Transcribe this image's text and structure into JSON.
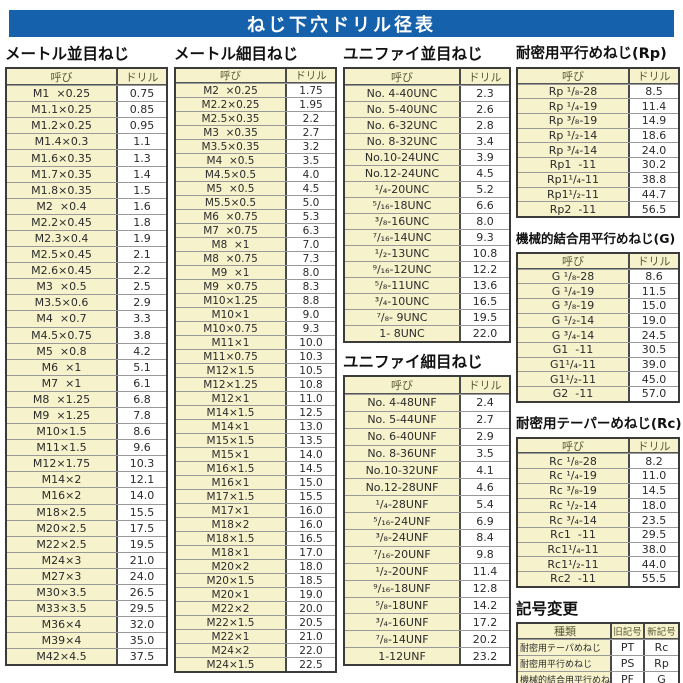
{
  "page_title": "ねじ下穴ドリル径表",
  "col_headers": {
    "name": "呼び",
    "drill": "ドリル"
  },
  "colors": {
    "banner_blue": "#1661ab",
    "cell_cream": "#f6f2cb",
    "border_dark": "#3b3b3b"
  },
  "sections": [
    {
      "id": "metric-coarse",
      "title": "メートル並目ねじ",
      "rows": [
        [
          "M1  ×0.25",
          "0.75"
        ],
        [
          "M1.1×0.25",
          "0.85"
        ],
        [
          "M1.2×0.25",
          "0.95"
        ],
        [
          "M1.4×0.3",
          "1.1"
        ],
        [
          "M1.6×0.35",
          "1.3"
        ],
        [
          "M1.7×0.35",
          "1.4"
        ],
        [
          "M1.8×0.35",
          "1.5"
        ],
        [
          "M2  ×0.4",
          "1.6"
        ],
        [
          "M2.2×0.45",
          "1.8"
        ],
        [
          "M2.3×0.4",
          "1.9"
        ],
        [
          "M2.5×0.45",
          "2.1"
        ],
        [
          "M2.6×0.45",
          "2.2"
        ],
        [
          "M3  ×0.5",
          "2.5"
        ],
        [
          "M3.5×0.6",
          "2.9"
        ],
        [
          "M4  ×0.7",
          "3.3"
        ],
        [
          "M4.5×0.75",
          "3.8"
        ],
        [
          "M5  ×0.8",
          "4.2"
        ],
        [
          "M6  ×1",
          "5.1"
        ],
        [
          "M7  ×1",
          "6.1"
        ],
        [
          "M8  ×1.25",
          "6.8"
        ],
        [
          "M9  ×1.25",
          "7.8"
        ],
        [
          "M10×1.5",
          "8.6"
        ],
        [
          "M11×1.5",
          "9.6"
        ],
        [
          "M12×1.75",
          "10.3"
        ],
        [
          "M14×2",
          "12.1"
        ],
        [
          "M16×2",
          "14.0"
        ],
        [
          "M18×2.5",
          "15.5"
        ],
        [
          "M20×2.5",
          "17.5"
        ],
        [
          "M22×2.5",
          "19.5"
        ],
        [
          "M24×3",
          "21.0"
        ],
        [
          "M27×3",
          "24.0"
        ],
        [
          "M30×3.5",
          "26.5"
        ],
        [
          "M33×3.5",
          "29.5"
        ],
        [
          "M36×4",
          "32.0"
        ],
        [
          "M39×4",
          "35.0"
        ],
        [
          "M42×4.5",
          "37.5"
        ]
      ]
    },
    {
      "id": "metric-fine",
      "title": "メートル細目ねじ",
      "rows": [
        [
          "M2  ×0.25",
          "1.75"
        ],
        [
          "M2.2×0.25",
          "1.95"
        ],
        [
          "M2.5×0.35",
          "2.2"
        ],
        [
          "M3  ×0.35",
          "2.7"
        ],
        [
          "M3.5×0.35",
          "3.2"
        ],
        [
          "M4  ×0.5",
          "3.5"
        ],
        [
          "M4.5×0.5",
          "4.0"
        ],
        [
          "M5  ×0.5",
          "4.5"
        ],
        [
          "M5.5×0.5",
          "5.0"
        ],
        [
          "M6  ×0.75",
          "5.3"
        ],
        [
          "M7  ×0.75",
          "6.3"
        ],
        [
          "M8  ×1",
          "7.0"
        ],
        [
          "M8  ×0.75",
          "7.3"
        ],
        [
          "M9  ×1",
          "8.0"
        ],
        [
          "M9  ×0.75",
          "8.3"
        ],
        [
          "M10×1.25",
          "8.8"
        ],
        [
          "M10×1",
          "9.0"
        ],
        [
          "M10×0.75",
          "9.3"
        ],
        [
          "M11×1",
          "10.0"
        ],
        [
          "M11×0.75",
          "10.3"
        ],
        [
          "M12×1.5",
          "10.5"
        ],
        [
          "M12×1.25",
          "10.8"
        ],
        [
          "M12×1",
          "11.0"
        ],
        [
          "M14×1.5",
          "12.5"
        ],
        [
          "M14×1",
          "13.0"
        ],
        [
          "M15×1.5",
          "13.5"
        ],
        [
          "M15×1",
          "14.0"
        ],
        [
          "M16×1.5",
          "14.5"
        ],
        [
          "M16×1",
          "15.0"
        ],
        [
          "M17×1.5",
          "15.5"
        ],
        [
          "M17×1",
          "16.0"
        ],
        [
          "M18×2",
          "16.0"
        ],
        [
          "M18×1.5",
          "16.5"
        ],
        [
          "M18×1",
          "17.0"
        ],
        [
          "M20×2",
          "18.0"
        ],
        [
          "M20×1.5",
          "18.5"
        ],
        [
          "M20×1",
          "19.0"
        ],
        [
          "M22×2",
          "20.0"
        ],
        [
          "M22×1.5",
          "20.5"
        ],
        [
          "M22×1",
          "21.0"
        ],
        [
          "M24×2",
          "22.0"
        ],
        [
          "M24×1.5",
          "22.5"
        ]
      ]
    },
    {
      "id": "unified-coarse",
      "title": "ユニファイ並目ねじ",
      "rows": [
        [
          "No. 4-40UNC",
          "2.3"
        ],
        [
          "No. 5-40UNC",
          "2.6"
        ],
        [
          "No. 6-32UNC",
          "2.8"
        ],
        [
          "No. 8-32UNC",
          "3.4"
        ],
        [
          "No.10-24UNC",
          "3.9"
        ],
        [
          "No.12-24UNC",
          "4.5"
        ],
        [
          "¹/₄-20UNC",
          "5.2"
        ],
        [
          "⁵/₁₆-18UNC",
          "6.6"
        ],
        [
          "³/₈-16UNC",
          "8.0"
        ],
        [
          "⁷/₁₆-14UNC",
          "9.3"
        ],
        [
          "¹/₂-13UNC",
          "10.8"
        ],
        [
          "⁹/₁₆-12UNC",
          "12.2"
        ],
        [
          "⁵/₈-11UNC",
          "13.6"
        ],
        [
          "³/₄-10UNC",
          "16.5"
        ],
        [
          "⁷/₈- 9UNC",
          "19.5"
        ],
        [
          "1- 8UNC",
          "22.0"
        ]
      ]
    },
    {
      "id": "unified-fine",
      "title": "ユニファイ細目ねじ",
      "rows": [
        [
          "No. 4-48UNF",
          "2.4"
        ],
        [
          "No. 5-44UNF",
          "2.7"
        ],
        [
          "No. 6-40UNF",
          "2.9"
        ],
        [
          "No. 8-36UNF",
          "3.5"
        ],
        [
          "No.10-32UNF",
          "4.1"
        ],
        [
          "No.12-28UNF",
          "4.6"
        ],
        [
          "¹/₄-28UNF",
          "5.4"
        ],
        [
          "⁵/₁₆-24UNF",
          "6.9"
        ],
        [
          "³/₈-24UNF",
          "8.4"
        ],
        [
          "⁷/₁₆-20UNF",
          "9.8"
        ],
        [
          "¹/₂-20UNF",
          "11.4"
        ],
        [
          "⁹/₁₆-18UNF",
          "12.8"
        ],
        [
          "⁵/₈-18UNF",
          "14.2"
        ],
        [
          "³/₄-16UNF",
          "17.2"
        ],
        [
          "⁷/₈-14UNF",
          "20.2"
        ],
        [
          "1-12UNF",
          "23.2"
        ]
      ]
    },
    {
      "id": "rp",
      "title": "耐密用平行めねじ(Rp)",
      "rows": [
        [
          "Rp ¹/₈-28",
          "8.5"
        ],
        [
          "Rp ¹/₄-19",
          "11.4"
        ],
        [
          "Rp ³/₈-19",
          "14.9"
        ],
        [
          "Rp ¹/₂-14",
          "18.6"
        ],
        [
          "Rp ³/₄-14",
          "24.0"
        ],
        [
          "Rp1  -11",
          "30.2"
        ],
        [
          "Rp1¹/₄-11",
          "38.8"
        ],
        [
          "Rp1¹/₂-11",
          "44.7"
        ],
        [
          "Rp2  -11",
          "56.5"
        ]
      ]
    },
    {
      "id": "g",
      "title": "機械的結合用平行めねじ(G)",
      "rows": [
        [
          "G ¹/₈-28",
          "8.6"
        ],
        [
          "G ¹/₄-19",
          "11.5"
        ],
        [
          "G ³/₈-19",
          "15.0"
        ],
        [
          "G ¹/₂-14",
          "19.0"
        ],
        [
          "G ³/₄-14",
          "24.5"
        ],
        [
          "G1  -11",
          "30.5"
        ],
        [
          "G1¹/₄-11",
          "39.0"
        ],
        [
          "G1¹/₂-11",
          "45.0"
        ],
        [
          "G2  -11",
          "57.0"
        ]
      ]
    },
    {
      "id": "rc",
      "title": "耐密用テーパーめねじ(Rc)",
      "rows": [
        [
          "Rc ¹/₈-28",
          "8.2"
        ],
        [
          "Rc ¹/₄-19",
          "11.0"
        ],
        [
          "Rc ³/₈-19",
          "14.5"
        ],
        [
          "Rc ¹/₂-14",
          "18.0"
        ],
        [
          "Rc ³/₄-14",
          "23.5"
        ],
        [
          "Rc1  -11",
          "29.5"
        ],
        [
          "Rc1¹/₄-11",
          "38.0"
        ],
        [
          "Rc1¹/₂-11",
          "44.0"
        ],
        [
          "Rc2  -11",
          "55.5"
        ]
      ]
    }
  ],
  "symbol_change": {
    "title": "記号変更",
    "headers": [
      "種類",
      "旧記号",
      "新記号"
    ],
    "rows": [
      [
        "耐密用テーパめねじ",
        "PT",
        "Rc"
      ],
      [
        "耐密用平行めねじ",
        "PS",
        "Rp"
      ],
      [
        "機械的結合用平行めねじ",
        "PF",
        "G"
      ]
    ]
  }
}
